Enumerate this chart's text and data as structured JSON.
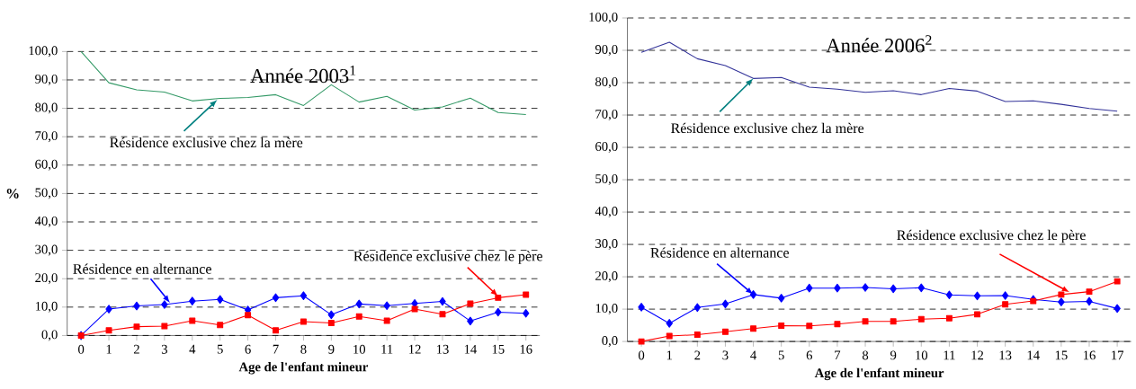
{
  "chart_data": [
    {
      "type": "line",
      "title": "Année 2003$^{1}$",
      "xlabel": "Age de l'enfant mineur",
      "ylabel": "%",
      "categories": [
        "0",
        "1",
        "2",
        "3",
        "4",
        "5",
        "6",
        "7",
        "8",
        "9",
        "10",
        "11",
        "12",
        "13",
        "14",
        "15",
        "16"
      ],
      "series": [
        {
          "name": "Résidence exclusive chez la mère",
          "color": "#339966",
          "marker": "none",
          "values": [
            100,
            89.0,
            86.5,
            85.7,
            82.6,
            83.5,
            83.8,
            84.8,
            81.0,
            88.3,
            82.2,
            84.2,
            79.4,
            80.5,
            83.6,
            78.5,
            77.8
          ]
        },
        {
          "name": "Résidence en alternance",
          "color": "#0000ff",
          "marker": "diamond",
          "values": [
            0,
            9.3,
            10.4,
            10.9,
            12.1,
            12.7,
            9.0,
            13.3,
            14.0,
            7.3,
            11.1,
            10.5,
            11.3,
            12.0,
            5.1,
            8.2,
            7.8
          ]
        },
        {
          "name": "Résidence exclusive chez le père",
          "color": "#ff0000",
          "marker": "square",
          "values": [
            0,
            1.8,
            3.1,
            3.3,
            5.2,
            3.7,
            7.2,
            1.8,
            4.9,
            4.4,
            6.7,
            5.2,
            9.3,
            7.5,
            11.2,
            13.3,
            14.4
          ]
        }
      ],
      "ylim": [
        0,
        100
      ],
      "yticks": [
        {
          "value": 0,
          "label": "0,0"
        },
        {
          "value": 10,
          "label": "10,0"
        },
        {
          "value": 20,
          "label": "20,0"
        },
        {
          "value": 30,
          "label": "30,0"
        },
        {
          "value": 40,
          "label": "40,0"
        },
        {
          "value": 50,
          "label": "50,0"
        },
        {
          "value": 60,
          "label": "60,0"
        },
        {
          "value": 70,
          "label": "70,0"
        },
        {
          "value": 80,
          "label": "80,0"
        },
        {
          "value": 90,
          "label": "90,0"
        },
        {
          "value": 100,
          "label": "100,0"
        }
      ],
      "grid": "y",
      "line_style": "solid",
      "legend": false
    },
    {
      "type": "line",
      "title": "Année 2006$^{2}$",
      "xlabel": "Age de l'enfant mineur",
      "categories": [
        "0",
        "1",
        "2",
        "3",
        "4",
        "5",
        "6",
        "7",
        "8",
        "9",
        "10",
        "11",
        "12",
        "13",
        "14",
        "15",
        "16",
        "17"
      ],
      "series": [
        {
          "name": "Résidence exclusive chez la mère",
          "color": "#333399",
          "marker": "none",
          "values": [
            89.4,
            92.5,
            87.4,
            85.3,
            81.3,
            81.6,
            78.6,
            78.0,
            77.0,
            77.5,
            76.3,
            78.2,
            77.4,
            74.2,
            74.4,
            73.3,
            72.0,
            71.2
          ]
        },
        {
          "name": "Résidence en alternance",
          "color": "#0000ff",
          "marker": "diamond",
          "values": [
            10.6,
            5.6,
            10.5,
            11.6,
            14.5,
            13.4,
            16.5,
            16.5,
            16.7,
            16.3,
            16.6,
            14.4,
            14.1,
            14.2,
            13.0,
            12.2,
            12.4,
            10.2
          ]
        },
        {
          "name": "Résidence exclusive chez le père",
          "color": "#ff0000",
          "marker": "square",
          "values": [
            0,
            1.7,
            2.1,
            3.0,
            4.0,
            4.9,
            4.8,
            5.4,
            6.2,
            6.2,
            6.9,
            7.2,
            8.4,
            11.5,
            12.5,
            14.5,
            15.4,
            18.6
          ]
        }
      ],
      "ylim": [
        0,
        100
      ],
      "yticks": [
        {
          "value": 0,
          "label": "0,0"
        },
        {
          "value": 10,
          "label": "10,0"
        },
        {
          "value": 20,
          "label": "20,0"
        },
        {
          "value": 30,
          "label": "30,0"
        },
        {
          "value": 40,
          "label": "40,0"
        },
        {
          "value": 50,
          "label": "50,0"
        },
        {
          "value": 60,
          "label": "60,0"
        },
        {
          "value": 70,
          "label": "70,0"
        },
        {
          "value": 80,
          "label": "80,0"
        },
        {
          "value": 90,
          "label": "90,0"
        },
        {
          "value": 100,
          "label": "100,0"
        }
      ],
      "grid": "y",
      "line_style": "solid",
      "legend": false
    }
  ]
}
